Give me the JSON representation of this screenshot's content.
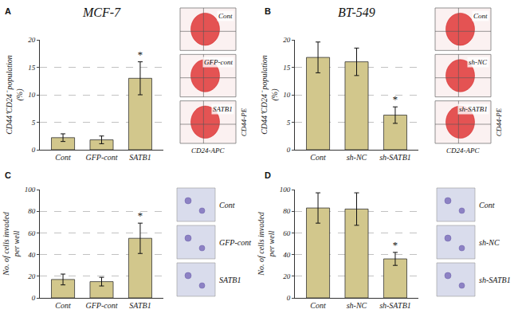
{
  "chart_data": [
    {
      "type": "bar",
      "panel": "A",
      "title": "MCF-7",
      "ylabel": [
        "CD44⁺CD24⁻ population",
        "(%)"
      ],
      "categories": [
        "Cont",
        "GFP-cont",
        "SATB1"
      ],
      "values": [
        2.2,
        1.8,
        13.0
      ],
      "errors": [
        0.7,
        0.7,
        3.0
      ],
      "color": "#d2c78c",
      "ylim": [
        0,
        20
      ],
      "yticks": [
        0,
        5,
        10,
        15,
        20
      ],
      "grid": true,
      "annotations": [
        {
          "category": "SATB1",
          "text": "*"
        }
      ],
      "inset_labels": [
        "Cont",
        "GFP-cont",
        "SATB1"
      ],
      "inset_xlabel": "CD24-APC",
      "inset_ylabel": "CD44-PE"
    },
    {
      "type": "bar",
      "panel": "B",
      "title": "BT-549",
      "ylabel": [
        "CD44⁺CD24⁻ population",
        "(%)"
      ],
      "categories": [
        "Cont",
        "sh-NC",
        "sh-SATB1"
      ],
      "values": [
        16.8,
        16.0,
        6.3
      ],
      "errors": [
        2.8,
        2.5,
        1.5
      ],
      "color": "#d2c78c",
      "ylim": [
        0,
        20
      ],
      "yticks": [
        0,
        5,
        10,
        15,
        20
      ],
      "grid": true,
      "annotations": [
        {
          "category": "sh-SATB1",
          "text": "*"
        }
      ],
      "inset_labels": [
        "Cont",
        "sh-NC",
        "sh-SATB1"
      ],
      "inset_xlabel": "CD24-APC",
      "inset_ylabel": "CD44-PE"
    },
    {
      "type": "bar",
      "panel": "C",
      "ylabel": [
        "No. of cells invaded",
        "per well"
      ],
      "categories": [
        "Cont",
        "GFP-cont",
        "SATB1"
      ],
      "values": [
        17,
        15,
        55
      ],
      "errors": [
        5,
        4,
        14
      ],
      "color": "#d2c78c",
      "ylim": [
        0,
        100
      ],
      "yticks": [
        0,
        20,
        40,
        60,
        80,
        100
      ],
      "grid": true,
      "annotations": [
        {
          "category": "SATB1",
          "text": "*"
        }
      ],
      "inset_labels": [
        "Cont",
        "GFP-cont",
        "SATB1"
      ]
    },
    {
      "type": "bar",
      "panel": "D",
      "ylabel": [
        "No. of cells invaded",
        "per well"
      ],
      "categories": [
        "Cont",
        "sh-NC",
        "sh-SATB1"
      ],
      "values": [
        83,
        82,
        36
      ],
      "errors": [
        14,
        15,
        6
      ],
      "color": "#d2c78c",
      "ylim": [
        0,
        100
      ],
      "yticks": [
        0,
        20,
        40,
        60,
        80,
        100
      ],
      "grid": true,
      "annotations": [
        {
          "category": "sh-SATB1",
          "text": "*"
        }
      ],
      "inset_labels": [
        "Cont",
        "sh-NC",
        "sh-SATB1"
      ]
    }
  ]
}
